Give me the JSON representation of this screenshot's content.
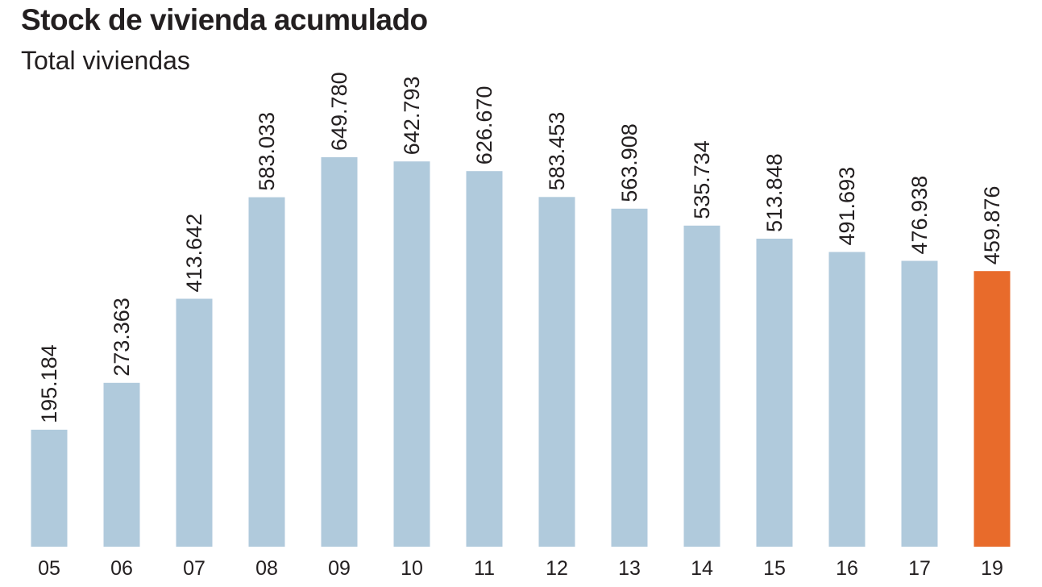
{
  "chart_data": {
    "type": "bar",
    "title": "Stock de vivienda acumulado",
    "subtitle": "Total viviendas",
    "xlabel": "",
    "ylabel": "",
    "categories": [
      "05",
      "06",
      "07",
      "08",
      "09",
      "10",
      "11",
      "12",
      "13",
      "14",
      "15",
      "16",
      "17",
      "19"
    ],
    "values": [
      195184,
      273363,
      413642,
      583033,
      649780,
      642793,
      626670,
      583453,
      563908,
      535734,
      513848,
      491693,
      476938,
      459876
    ],
    "value_labels": [
      "195.184",
      "273.363",
      "413.642",
      "583.033",
      "649.780",
      "642.793",
      "626.670",
      "583.453",
      "563.908",
      "535.734",
      "513.848",
      "491.693",
      "476.938",
      "459.876"
    ],
    "ylim": [
      0,
      649780
    ],
    "grid": false,
    "legend": "none",
    "colors": {
      "default_bar": "#b0cadc",
      "highlight_bar": "#e86b2b",
      "text": "#231f20"
    },
    "highlight_category": "19"
  }
}
